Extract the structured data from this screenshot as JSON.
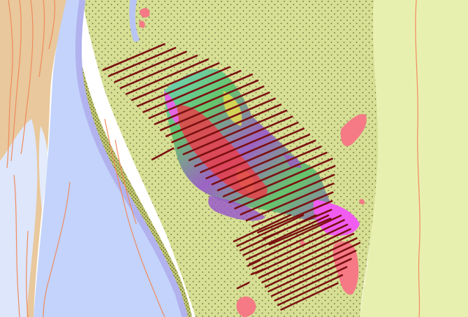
{
  "map": {
    "colors": {
      "background": "#ffffff",
      "plain_fill": "#e8f0b0",
      "dotted_terrace": "#d6df94",
      "dot": "#6b6b3a",
      "river_water": "#c3d3fb",
      "river_outline": "#b2b2ee",
      "pale_water": "#dde6fb",
      "left_bank": "#e8c89c",
      "contour": "#f08a5c",
      "hatch_line": "#7a1010",
      "anomaly_pink": "#f57a86",
      "anomaly_magenta": "#f05cf0",
      "anomaly_green": "#5fc46a",
      "anomaly_cyan": "#6ad2c8",
      "anomaly_purple": "#9a5cc8",
      "anomaly_yellow": "#e8e04a",
      "anomaly_red": "#e8404a"
    },
    "layers": [
      "left-bank-terrain",
      "river-channel",
      "dotted-floodplain",
      "eastern-plain",
      "contour-lines",
      "magnetic-anomaly-zone",
      "survey-transect-lines",
      "pink-patches"
    ]
  }
}
